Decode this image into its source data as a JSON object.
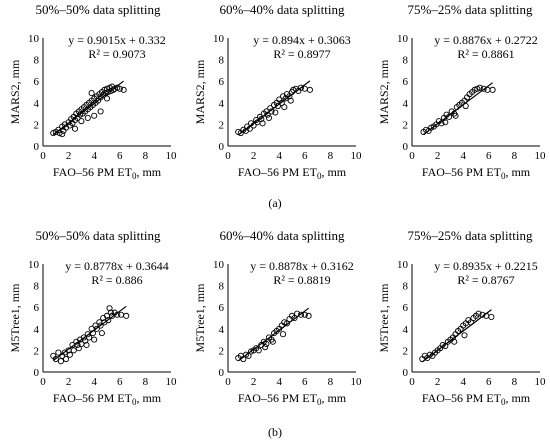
{
  "chart_data": [
    {
      "type": "scatter",
      "title": "50%–50% data splitting",
      "xlabel": "FAO–56 PM ET",
      "xlabel_sub": "0",
      "xlabel_unit": ", mm",
      "ylabel": "MARS2, mm",
      "xlim": [
        0,
        10
      ],
      "ylim": [
        0,
        10
      ],
      "xticks": [
        "0",
        "2",
        "4",
        "6",
        "8",
        "10"
      ],
      "yticks": [
        "0",
        "2",
        "4",
        "6",
        "8",
        "10"
      ],
      "equation": "y = 0.9015x + 0.332",
      "r2": "R² = 0.9073",
      "slope": 0.9015,
      "intercept": 0.332,
      "x": [
        0.8,
        1.0,
        1.2,
        1.3,
        1.5,
        1.6,
        1.7,
        1.8,
        2.0,
        2.1,
        2.2,
        2.3,
        2.4,
        2.5,
        2.6,
        2.7,
        2.8,
        2.9,
        3.0,
        3.1,
        3.2,
        3.3,
        3.4,
        3.5,
        3.6,
        3.7,
        3.8,
        3.9,
        4.0,
        4.1,
        4.2,
        4.3,
        4.4,
        4.5,
        4.6,
        4.7,
        4.8,
        4.9,
        5.0,
        5.1,
        5.2,
        5.3,
        5.4,
        5.5,
        5.6,
        5.8,
        6.0,
        6.3,
        3.0,
        3.5,
        4.0,
        4.5,
        2.5,
        1.5,
        5.0,
        3.8
      ],
      "y": [
        1.2,
        1.3,
        1.5,
        1.2,
        1.8,
        1.4,
        2.0,
        1.7,
        2.2,
        1.9,
        2.5,
        2.1,
        2.7,
        2.4,
        3.0,
        2.6,
        3.2,
        2.9,
        3.4,
        3.0,
        3.6,
        3.2,
        3.8,
        3.4,
        4.0,
        3.6,
        4.2,
        3.8,
        4.4,
        4.0,
        4.6,
        4.2,
        4.8,
        4.5,
        5.0,
        4.7,
        5.2,
        4.9,
        5.3,
        5.0,
        5.4,
        5.1,
        5.5,
        5.2,
        5.3,
        5.4,
        5.3,
        5.2,
        2.3,
        2.6,
        2.8,
        3.2,
        1.6,
        1.1,
        4.4,
        4.9
      ]
    },
    {
      "type": "scatter",
      "title": "60%–40% data splitting",
      "xlabel": "FAO–56 PM ET",
      "xlabel_sub": "0",
      "xlabel_unit": ", mm",
      "ylabel": "MARS2, mm",
      "xlim": [
        0,
        10
      ],
      "ylim": [
        0,
        10
      ],
      "xticks": [
        "0",
        "2",
        "4",
        "6",
        "8",
        "10"
      ],
      "yticks": [
        "0",
        "2",
        "4",
        "6",
        "8",
        "10"
      ],
      "equation": "y = 0.894x + 0.3063",
      "r2": "R² = 0.8977",
      "slope": 0.894,
      "intercept": 0.3063,
      "x": [
        0.8,
        1.0,
        1.2,
        1.4,
        1.5,
        1.7,
        1.8,
        2.0,
        2.2,
        2.3,
        2.5,
        2.6,
        2.8,
        3.0,
        3.1,
        3.3,
        3.4,
        3.6,
        3.8,
        3.9,
        4.0,
        4.2,
        4.3,
        4.5,
        4.6,
        4.8,
        5.0,
        5.1,
        5.3,
        5.5,
        5.7,
        6.0,
        6.4,
        3.2,
        3.7,
        4.4,
        2.7,
        4.9
      ],
      "y": [
        1.3,
        1.2,
        1.5,
        1.4,
        1.8,
        1.6,
        2.1,
        1.9,
        2.4,
        2.2,
        2.7,
        2.5,
        3.0,
        3.2,
        2.9,
        3.5,
        3.2,
        3.8,
        4.0,
        3.7,
        4.3,
        4.0,
        4.6,
        4.4,
        4.8,
        4.6,
        5.0,
        5.2,
        5.3,
        5.1,
        5.4,
        5.3,
        5.2,
        2.6,
        3.1,
        3.6,
        2.1,
        4.2
      ]
    },
    {
      "type": "scatter",
      "title": "75%–25% data splitting",
      "xlabel": "FAO–56 PM ET",
      "xlabel_sub": "0",
      "xlabel_unit": ", mm",
      "ylabel": "MARS2, mm",
      "xlim": [
        0,
        10
      ],
      "ylim": [
        0,
        10
      ],
      "xticks": [
        "0",
        "2",
        "4",
        "6",
        "8",
        "10"
      ],
      "yticks": [
        "0",
        "2",
        "4",
        "6",
        "8",
        "10"
      ],
      "equation": "y = 0.8876x + 0.2722",
      "r2": "R² = 0.8861",
      "slope": 0.8876,
      "intercept": 0.2722,
      "x": [
        0.9,
        1.1,
        1.3,
        1.5,
        1.7,
        1.9,
        2.1,
        2.3,
        2.5,
        2.7,
        2.9,
        3.1,
        3.3,
        3.5,
        3.7,
        3.9,
        4.1,
        4.3,
        4.5,
        4.7,
        4.9,
        5.1,
        5.3,
        5.6,
        5.9,
        6.3,
        3.4,
        4.2,
        2.6
      ],
      "y": [
        1.3,
        1.5,
        1.4,
        1.7,
        1.8,
        2.0,
        2.3,
        2.1,
        2.6,
        2.9,
        2.7,
        3.2,
        3.0,
        3.6,
        3.8,
        4.0,
        4.2,
        4.5,
        4.8,
        5.0,
        5.2,
        5.3,
        5.4,
        5.3,
        5.2,
        5.2,
        2.8,
        3.7,
        2.2
      ]
    },
    {
      "type": "scatter",
      "title": "50%–50% data splitting",
      "xlabel": "FAO–56 PM ET",
      "xlabel_sub": "0",
      "xlabel_unit": ", mm",
      "ylabel": "M5Tree1, mm",
      "xlim": [
        0,
        10
      ],
      "ylim": [
        0,
        10
      ],
      "xticks": [
        "0",
        "2",
        "4",
        "6",
        "8",
        "10"
      ],
      "yticks": [
        "0",
        "2",
        "4",
        "6",
        "8",
        "10"
      ],
      "equation": "y = 0.8778x + 0.3644",
      "r2": "R² = 0.886",
      "slope": 0.8778,
      "intercept": 0.3644,
      "x": [
        0.8,
        1.0,
        1.2,
        1.4,
        1.5,
        1.7,
        1.8,
        2.0,
        2.1,
        2.3,
        2.4,
        2.6,
        2.7,
        2.9,
        3.0,
        3.2,
        3.3,
        3.5,
        3.6,
        3.8,
        3.9,
        4.1,
        4.2,
        4.4,
        4.5,
        4.7,
        4.8,
        5.0,
        5.1,
        5.3,
        5.4,
        5.6,
        5.8,
        6.1,
        6.5,
        3.4,
        4.0,
        4.6,
        2.8,
        5.2
      ],
      "y": [
        1.5,
        1.2,
        1.8,
        1.0,
        1.5,
        1.8,
        1.2,
        2.0,
        1.6,
        2.5,
        2.0,
        2.8,
        2.5,
        3.0,
        2.6,
        3.2,
        2.9,
        3.5,
        3.2,
        4.0,
        3.6,
        4.3,
        4.0,
        4.6,
        4.3,
        5.0,
        4.6,
        5.2,
        4.8,
        5.5,
        5.2,
        5.5,
        5.3,
        5.3,
        5.2,
        2.5,
        3.0,
        3.6,
        2.2,
        5.9
      ]
    },
    {
      "type": "scatter",
      "title": "60%–40% data splitting",
      "xlabel": "FAO–56 PM ET",
      "xlabel_sub": "0",
      "xlabel_unit": ", mm",
      "ylabel": "M5Tree1, mm",
      "xlim": [
        0,
        10
      ],
      "ylim": [
        0,
        10
      ],
      "xticks": [
        "0",
        "2",
        "4",
        "6",
        "8",
        "10"
      ],
      "yticks": [
        "0",
        "2",
        "4",
        "6",
        "8",
        "10"
      ],
      "equation": "y = 0.8878x + 0.3162",
      "r2": "R² = 0.8819",
      "slope": 0.8878,
      "intercept": 0.3162,
      "x": [
        0.8,
        1.0,
        1.2,
        1.4,
        1.6,
        1.8,
        2.0,
        2.2,
        2.4,
        2.6,
        2.8,
        3.0,
        3.2,
        3.4,
        3.6,
        3.8,
        4.0,
        4.2,
        4.4,
        4.6,
        4.8,
        5.0,
        5.2,
        5.4,
        5.7,
        6.0,
        6.3,
        3.5,
        4.3,
        2.9
      ],
      "y": [
        1.3,
        1.5,
        1.2,
        1.6,
        1.5,
        1.9,
        2.0,
        2.2,
        2.0,
        2.5,
        2.8,
        2.6,
        3.2,
        3.0,
        3.6,
        3.8,
        4.0,
        4.3,
        4.6,
        4.5,
        4.9,
        5.2,
        5.0,
        5.4,
        5.3,
        5.3,
        5.2,
        2.8,
        3.5,
        2.3
      ]
    },
    {
      "type": "scatter",
      "title": "75%–25% data splitting",
      "xlabel": "FAO–56 PM ET",
      "xlabel_sub": "0",
      "xlabel_unit": ", mm",
      "ylabel": "M5Tree1, mm",
      "xlim": [
        0,
        10
      ],
      "ylim": [
        0,
        10
      ],
      "xticks": [
        "0",
        "2",
        "4",
        "6",
        "8",
        "10"
      ],
      "yticks": [
        "0",
        "2",
        "4",
        "6",
        "8",
        "10"
      ],
      "equation": "y = 0.8935x + 0.2215",
      "r2": "R² = 0.8767",
      "slope": 0.8935,
      "intercept": 0.2215,
      "x": [
        0.8,
        1.0,
        1.2,
        1.4,
        1.6,
        1.8,
        2.0,
        2.2,
        2.4,
        2.6,
        2.8,
        3.0,
        3.2,
        3.4,
        3.6,
        3.8,
        4.0,
        4.2,
        4.4,
        4.6,
        4.8,
        5.0,
        5.2,
        5.5,
        5.8,
        6.2,
        3.3,
        4.1
      ],
      "y": [
        1.2,
        1.5,
        1.3,
        1.6,
        1.5,
        1.8,
        2.0,
        2.2,
        2.5,
        2.4,
        2.8,
        3.0,
        3.2,
        3.5,
        3.8,
        4.0,
        4.3,
        4.5,
        4.8,
        4.6,
        5.0,
        5.2,
        5.4,
        5.3,
        5.2,
        5.1,
        2.8,
        3.4
      ]
    }
  ],
  "labels": {
    "panel_a": "(a)",
    "panel_b": "(b)"
  }
}
